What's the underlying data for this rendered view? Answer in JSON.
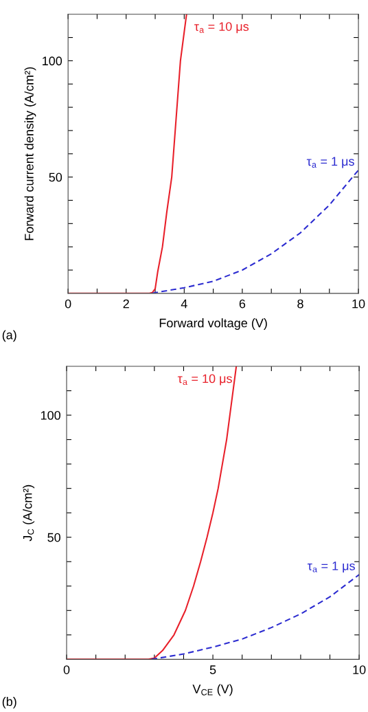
{
  "chart_data": [
    {
      "type": "line",
      "xlabel": "Forward voltage (V)",
      "ylabel": "Forward current density (A/cm²)",
      "xlim": [
        0,
        10
      ],
      "ylim": [
        0,
        120
      ],
      "xticks": [
        0,
        {
          "value": 1,
          "label": null
        },
        2,
        {
          "value": 3,
          "label": null
        },
        4,
        {
          "value": 5,
          "label": null
        },
        6,
        {
          "value": 7,
          "label": null
        },
        8,
        {
          "value": 9,
          "label": null
        },
        10
      ],
      "yticks": [
        {
          "value": 10,
          "label": null
        },
        {
          "value": 20,
          "label": null
        },
        {
          "value": 30,
          "label": null
        },
        {
          "value": 40,
          "label": null
        },
        50,
        {
          "value": 60,
          "label": null
        },
        {
          "value": 70,
          "label": null
        },
        {
          "value": 80,
          "label": null
        },
        {
          "value": 90,
          "label": null
        },
        100,
        {
          "value": 110,
          "label": null
        }
      ],
      "grid": false,
      "legend": false,
      "series": [
        {
          "name": "τ$_{a}$ = 10 μs",
          "color": "#e8202a",
          "line_style": "solid",
          "x": [
            0,
            2.8,
            2.9,
            3.0,
            3.09,
            3.25,
            3.4,
            3.57,
            3.72,
            3.87,
            4.08
          ],
          "values": [
            0,
            0,
            0.3,
            2,
            9.5,
            20,
            35,
            50,
            75,
            100,
            120
          ]
        },
        {
          "name": "τ$_{a}$ = 1 μs",
          "color": "#2b2bd0",
          "line_style": "dashed",
          "x": [
            2.9,
            3,
            4,
            5,
            6,
            7,
            8,
            9,
            10
          ],
          "values": [
            0,
            0.3,
            2.4,
            5.2,
            10,
            17,
            26,
            38,
            53
          ]
        }
      ],
      "annotations": [
        "(a)"
      ]
    },
    {
      "type": "line",
      "xlabel": "V$_{CE}$ (V)",
      "ylabel": "J$_{C}$ (A/cm²)",
      "xlim": [
        0,
        10
      ],
      "ylim": [
        0,
        120
      ],
      "xticks": [
        0,
        {
          "value": 1,
          "label": null
        },
        {
          "value": 2,
          "label": null
        },
        {
          "value": 3,
          "label": null
        },
        {
          "value": 4,
          "label": null
        },
        5,
        {
          "value": 6,
          "label": null
        },
        {
          "value": 7,
          "label": null
        },
        {
          "value": 8,
          "label": null
        },
        {
          "value": 9,
          "label": null
        },
        10
      ],
      "yticks": [
        {
          "value": 10,
          "label": null
        },
        {
          "value": 20,
          "label": null
        },
        {
          "value": 30,
          "label": null
        },
        {
          "value": 40,
          "label": null
        },
        50,
        {
          "value": 60,
          "label": null
        },
        {
          "value": 70,
          "label": null
        },
        {
          "value": 80,
          "label": null
        },
        {
          "value": 90,
          "label": null
        },
        100,
        {
          "value": 110,
          "label": null
        }
      ],
      "grid": false,
      "legend": false,
      "series": [
        {
          "name": "τ$_{a}$ = 10 μs",
          "color": "#e8202a",
          "line_style": "solid",
          "x": [
            0,
            2.8,
            3.0,
            3.28,
            3.67,
            4.06,
            4.34,
            4.58,
            4.8,
            5.0,
            5.18,
            5.47,
            5.58,
            5.8
          ],
          "values": [
            0,
            0,
            0.5,
            3.6,
            10,
            20,
            30,
            40,
            50,
            60,
            70,
            90,
            100,
            120
          ]
        },
        {
          "name": "τ$_{a}$ = 1 μs",
          "color": "#2b2bd0",
          "line_style": "dashed",
          "x": [
            2.9,
            3,
            4,
            5,
            6,
            7,
            8,
            9,
            10
          ],
          "values": [
            0,
            0.2,
            2.2,
            5,
            8.3,
            13,
            18.6,
            25.6,
            34.7
          ]
        }
      ],
      "annotations": [
        "(b)"
      ]
    }
  ]
}
